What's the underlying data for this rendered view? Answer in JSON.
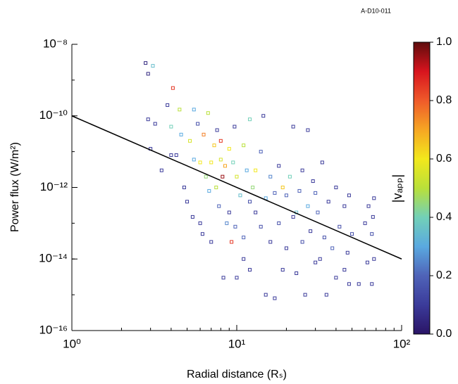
{
  "chart_data": {
    "type": "scatter",
    "annotation": "A-D10-011",
    "xlabel": "Radial distance (Rₛ)",
    "ylabel": "Power flux (W/m²)",
    "xlog": true,
    "ylog": true,
    "xlim": [
      1,
      100
    ],
    "ylim": [
      1e-16,
      1e-08
    ],
    "xticks": [
      {
        "value": 1,
        "label": "10⁰"
      },
      {
        "value": 10,
        "label": "10¹"
      },
      {
        "value": 100,
        "label": "10²"
      }
    ],
    "yticks": [
      {
        "value": 1e-16,
        "label": "10⁻¹⁶"
      },
      {
        "value": 1e-14,
        "label": "10⁻¹⁴"
      },
      {
        "value": 1e-12,
        "label": "10⁻¹²"
      },
      {
        "value": 1e-10,
        "label": "10⁻¹⁰"
      },
      {
        "value": 1e-08,
        "label": "10⁻⁸"
      }
    ],
    "series": [
      {
        "x": [
          2.8,
          2.9,
          3.1,
          2.9,
          3.0,
          3.2,
          3.5,
          3.8,
          4.0,
          4.1,
          4.0,
          4.5,
          4.6,
          4.8,
          5.0,
          5.2,
          5.5,
          5.5,
          6.0,
          6.0,
          6.3,
          6.5,
          6.8,
          7.0,
          7.0,
          7.3,
          7.5,
          7.8,
          8.0,
          8.0,
          8.3,
          8.5,
          8.7,
          9.0,
          9.0,
          9.3,
          9.5,
          9.8,
          10,
          10,
          10.5,
          11,
          11,
          11.5,
          12,
          12,
          12.5,
          13,
          13,
          14,
          14,
          15,
          15,
          16,
          16,
          17,
          17,
          18,
          18,
          19,
          20,
          20,
          21,
          22,
          22,
          23,
          24,
          25,
          25,
          26,
          27,
          28,
          29,
          30,
          31,
          32,
          33,
          34,
          35,
          36,
          38,
          40,
          40,
          42,
          45,
          45,
          47,
          48,
          48,
          50,
          55,
          60,
          62,
          63,
          66,
          66,
          67,
          68,
          68,
          4.3,
          5.8,
          6.7,
          7.6,
          9.7,
          12,
          14.5,
          27,
          19,
          8.2,
          5.4,
          6.2,
          11,
          23,
          30
        ],
        "values": [
          3e-09,
          1.5e-09,
          2.5e-09,
          8e-11,
          1.2e-11,
          6e-11,
          3e-12,
          2e-10,
          5e-11,
          6e-10,
          8e-12,
          1.5e-10,
          3e-11,
          1e-12,
          4e-13,
          2e-11,
          6e-12,
          1.5e-10,
          5e-12,
          1e-13,
          3e-11,
          2e-12,
          8e-13,
          5e-12,
          3e-14,
          1.5e-11,
          1e-12,
          3e-13,
          2e-11,
          6e-12,
          3e-15,
          4e-12,
          1e-13,
          1.2e-11,
          2e-13,
          3e-14,
          5e-12,
          8e-14,
          2e-12,
          3e-15,
          6e-13,
          1.5e-11,
          1e-14,
          3e-12,
          4e-13,
          5e-15,
          1e-12,
          2e-13,
          3e-12,
          8e-14,
          1e-11,
          5e-13,
          1e-15,
          2e-12,
          3e-14,
          7e-13,
          8e-16,
          1e-13,
          4e-12,
          5e-15,
          6e-13,
          2e-14,
          2e-12,
          1.5e-13,
          5e-11,
          4e-15,
          8e-13,
          3e-14,
          3e-12,
          1e-15,
          3e-13,
          6e-14,
          1.5e-12,
          8e-15,
          2e-13,
          1e-14,
          5e-12,
          4e-14,
          1e-15,
          4e-13,
          2e-14,
          1e-12,
          3e-15,
          8e-14,
          3e-13,
          5e-15,
          1.5e-14,
          6e-13,
          2e-15,
          5e-14,
          2e-15,
          1e-13,
          8e-15,
          3e-13,
          2e-15,
          5e-14,
          1.5e-13,
          1e-14,
          5e-13,
          8e-12,
          6e-11,
          1.2e-10,
          4e-11,
          5e-11,
          8e-11,
          1e-10,
          4e-11,
          1e-12,
          2e-12,
          1.5e-13,
          5e-14,
          4e-14,
          2e-13,
          7e-13
        ],
        "color_values": [
          0.05,
          0.05,
          0.35,
          0.1,
          0.1,
          0.1,
          0.1,
          0.1,
          0.4,
          0.85,
          0.1,
          0.5,
          0.3,
          0.1,
          0.1,
          0.55,
          0.3,
          0.3,
          0.6,
          0.1,
          0.75,
          0.45,
          0.3,
          0.6,
          0.1,
          0.65,
          0.5,
          0.2,
          0.85,
          0.55,
          0.1,
          0.7,
          0.25,
          0.6,
          0.1,
          0.85,
          0.4,
          0.2,
          0.55,
          0.1,
          0.35,
          0.5,
          0.1,
          0.3,
          0.15,
          0.1,
          0.45,
          0.1,
          0.6,
          0.15,
          0.2,
          0.3,
          0.1,
          0.25,
          0.1,
          0.2,
          0.1,
          0.15,
          0.1,
          0.1,
          0.2,
          0.1,
          0.4,
          0.1,
          0.1,
          0.1,
          0.2,
          0.15,
          0.1,
          0.1,
          0.3,
          0.1,
          0.1,
          0.1,
          0.2,
          0.1,
          0.1,
          0.15,
          0.1,
          0.1,
          0.2,
          0.1,
          0.1,
          0.15,
          0.1,
          0.1,
          0.1,
          0.1,
          0.1,
          0.15,
          0.1,
          0.1,
          0.1,
          0.1,
          0.1,
          0.15,
          0.1,
          0.1,
          0.1,
          0.1,
          0.15,
          0.5,
          0.1,
          0.1,
          0.4,
          0.1,
          0.1,
          0.65,
          0.95,
          0.1,
          0.1,
          0.2,
          0.35,
          0.2
        ]
      }
    ],
    "fit_line": {
      "color": "#000000",
      "x": [
        1,
        100
      ],
      "y": [
        1e-10,
        1e-14
      ]
    },
    "colorbar": {
      "label": "|vₐₚₚ|",
      "lim": [
        0,
        1
      ],
      "ticks": [
        {
          "value": 0,
          "label": "0.0"
        },
        0.2,
        0.4,
        0.6,
        0.8,
        {
          "value": 1,
          "label": "1.0"
        }
      ],
      "colormap": [
        "#2a1466",
        "#3b3b9a",
        "#4f63b8",
        "#5aa9e0",
        "#72d0b8",
        "#b9e03a",
        "#f2e81c",
        "#f6a623",
        "#ef5a2a",
        "#d8141e",
        "#5e0c0c"
      ]
    }
  }
}
